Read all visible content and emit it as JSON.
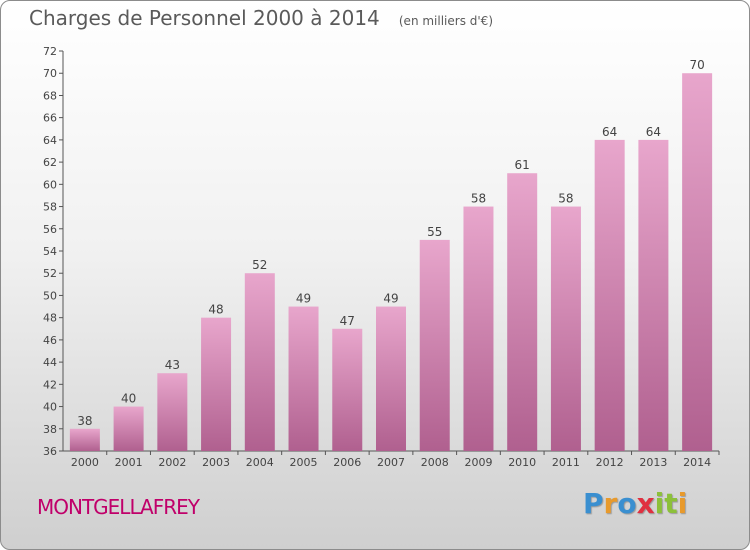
{
  "header": {
    "title": "Charges de Personnel 2000 à 2014",
    "subtitle": "(en milliers d'€)"
  },
  "footer": {
    "town": "MONTGELLAFREY",
    "logo": "Proxiti"
  },
  "colors": {
    "bar_top": "#e8a6cc",
    "bar_bottom": "#b0608f",
    "town": "#c0006a",
    "logo_letters": [
      "#3a8fd0",
      "#e89a2c",
      "#3a8fd0",
      "#e03040",
      "#8cc03a",
      "#8cc03a",
      "#e89a2c"
    ]
  },
  "chart_data": {
    "type": "bar",
    "title": "Charges de Personnel 2000 à 2014",
    "subtitle": "(en milliers d'€)",
    "xlabel": "",
    "ylabel": "",
    "categories": [
      "2000",
      "2001",
      "2002",
      "2003",
      "2004",
      "2005",
      "2006",
      "2007",
      "2008",
      "2009",
      "2010",
      "2011",
      "2012",
      "2013",
      "2014"
    ],
    "values": [
      38,
      40,
      43,
      48,
      52,
      49,
      47,
      49,
      55,
      58,
      61,
      58,
      64,
      64,
      70
    ],
    "ylim": [
      36,
      72
    ],
    "yticks": [
      36,
      38,
      40,
      42,
      44,
      46,
      48,
      50,
      52,
      54,
      56,
      58,
      60,
      62,
      64,
      66,
      68,
      70,
      72
    ],
    "grid": false,
    "data_labels": true
  }
}
